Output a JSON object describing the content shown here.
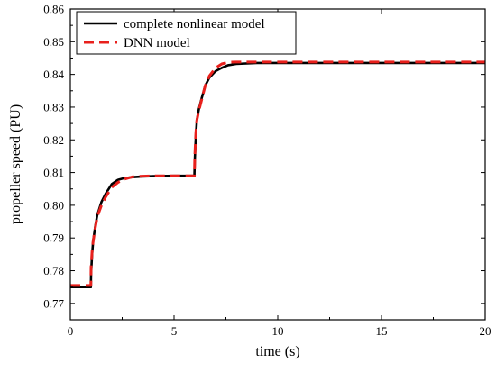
{
  "chart_data": {
    "type": "line",
    "title": "",
    "xlabel": "time (s)",
    "ylabel": "propeller speed (PU)",
    "xlim": [
      0,
      20
    ],
    "ylim": [
      0.765,
      0.86
    ],
    "x_ticks": [
      0,
      5,
      10,
      15,
      20
    ],
    "x_tick_labels": [
      "0",
      "5",
      "10",
      "15",
      "20"
    ],
    "y_ticks": [
      0.77,
      0.78,
      0.79,
      0.8,
      0.81,
      0.82,
      0.83,
      0.84,
      0.85,
      0.86
    ],
    "y_tick_labels": [
      "0.77",
      "0.78",
      "0.79",
      "0.80",
      "0.81",
      "0.82",
      "0.83",
      "0.84",
      "0.85",
      "0.86"
    ],
    "grid": false,
    "legend_position": "top-left",
    "series": [
      {
        "name": "complete nonlinear model",
        "color": "#000000",
        "style": "solid",
        "x": [
          0,
          0.5,
          0.99,
          1.0,
          1.05,
          1.1,
          1.2,
          1.3,
          1.5,
          1.7,
          2.0,
          2.3,
          2.6,
          3.0,
          3.5,
          4.0,
          5.0,
          5.98,
          6.0,
          6.05,
          6.1,
          6.2,
          6.3,
          6.5,
          6.7,
          7.0,
          7.3,
          7.6,
          8.0,
          9.0,
          10.0,
          12.0,
          15.0,
          18.0,
          20.0
        ],
        "y": [
          0.775,
          0.775,
          0.775,
          0.779,
          0.785,
          0.789,
          0.7935,
          0.797,
          0.801,
          0.8035,
          0.8065,
          0.8078,
          0.8083,
          0.8086,
          0.8088,
          0.8089,
          0.809,
          0.809,
          0.814,
          0.821,
          0.826,
          0.8295,
          0.832,
          0.8365,
          0.839,
          0.841,
          0.842,
          0.8428,
          0.8432,
          0.8435,
          0.8435,
          0.8435,
          0.8435,
          0.8435,
          0.8435
        ]
      },
      {
        "name": "DNN model",
        "color": "#e8201c",
        "style": "dashed",
        "x": [
          0,
          0.5,
          0.99,
          1.0,
          1.05,
          1.1,
          1.2,
          1.3,
          1.5,
          1.7,
          2.0,
          2.3,
          2.6,
          3.0,
          3.5,
          4.0,
          5.0,
          5.98,
          6.0,
          6.05,
          6.1,
          6.2,
          6.3,
          6.5,
          6.7,
          7.0,
          7.3,
          7.6,
          8.0,
          9.0,
          10.0,
          12.0,
          15.0,
          18.0,
          20.0
        ],
        "y": [
          0.7755,
          0.7755,
          0.7755,
          0.781,
          0.786,
          0.789,
          0.793,
          0.7965,
          0.8,
          0.8025,
          0.8055,
          0.807,
          0.808,
          0.8087,
          0.8089,
          0.809,
          0.809,
          0.809,
          0.815,
          0.822,
          0.826,
          0.829,
          0.8315,
          0.8365,
          0.8395,
          0.842,
          0.8432,
          0.8437,
          0.8438,
          0.8438,
          0.8438,
          0.8438,
          0.8438,
          0.8438,
          0.8438
        ]
      }
    ]
  }
}
